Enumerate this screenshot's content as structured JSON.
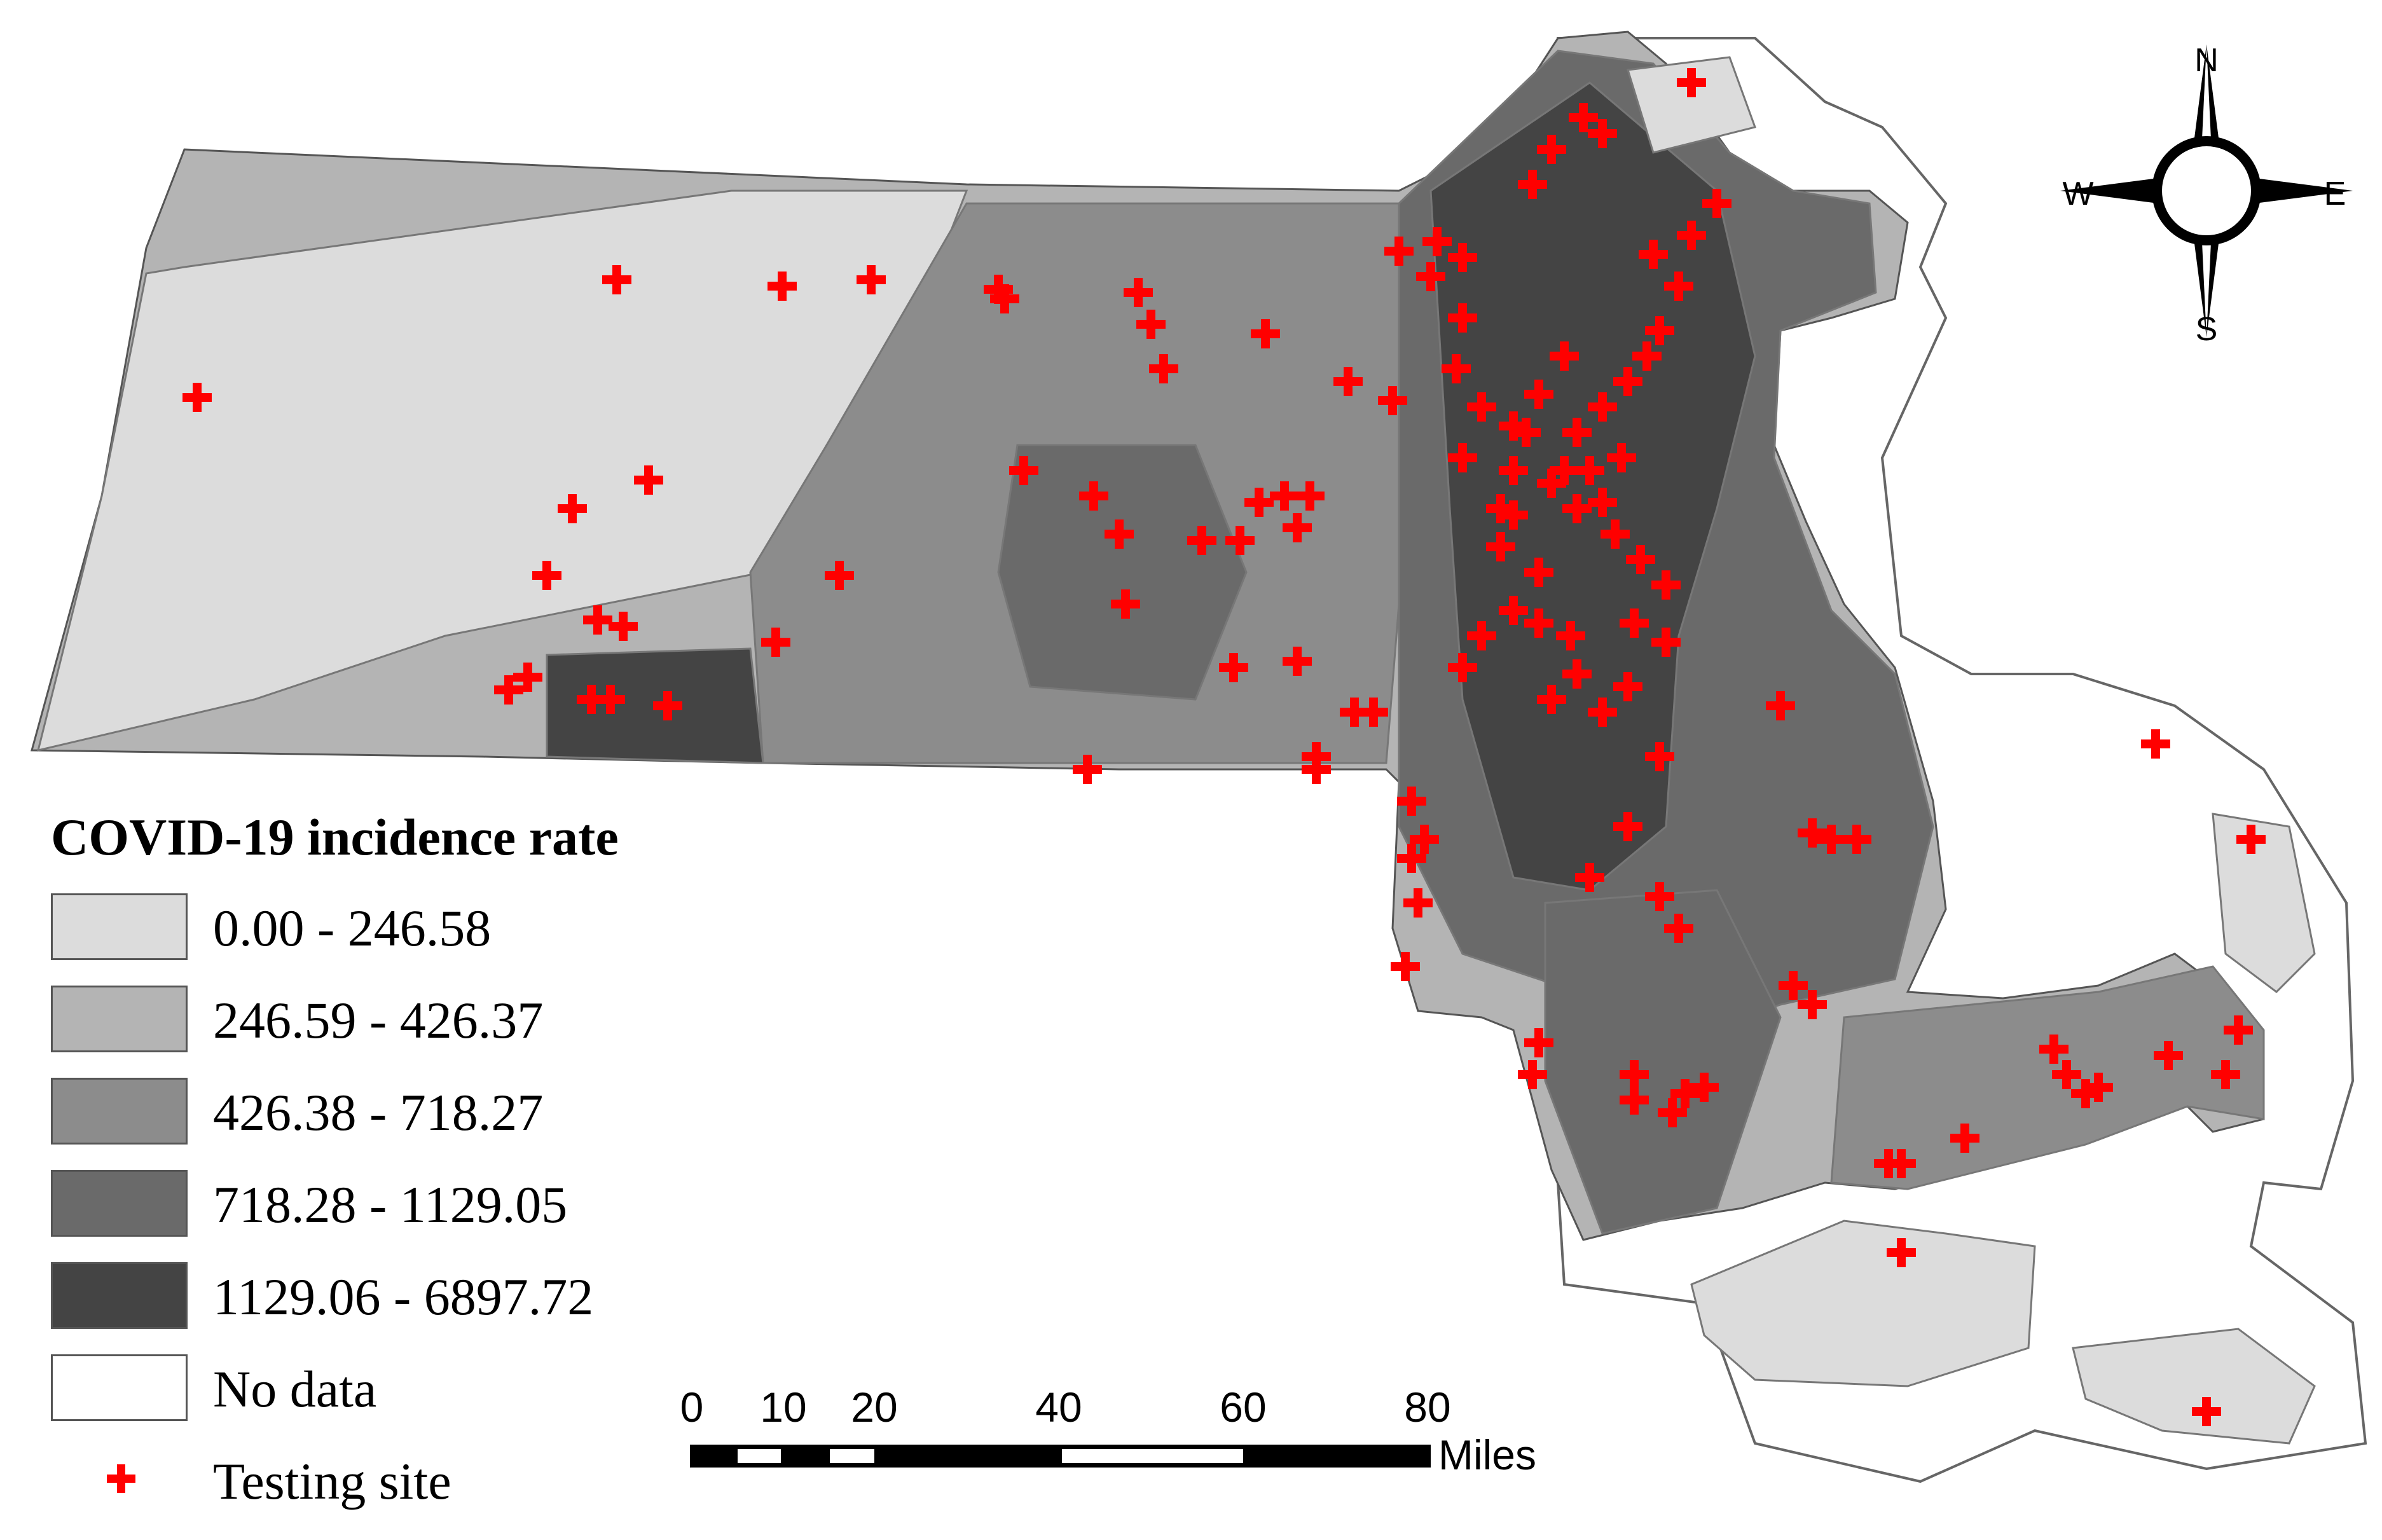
{
  "legend": {
    "title": "COVID-19 incidence rate",
    "classes": [
      {
        "label": "0.00 - 246.58",
        "color": "#dcdcdc"
      },
      {
        "label": "246.59 - 426.37",
        "color": "#b4b4b4"
      },
      {
        "label": "426.38 - 718.27",
        "color": "#8c8c8c"
      },
      {
        "label": "718.28 - 1129.05",
        "color": "#6a6a6a"
      },
      {
        "label": "1129.06 - 6897.72",
        "color": "#444444"
      },
      {
        "label": "No data",
        "color": "#ffffff"
      }
    ],
    "testing_site_label": "Testing site",
    "testing_site_color": "#ff0000"
  },
  "scale_bar": {
    "ticks": [
      "0",
      "10",
      "20",
      "40",
      "60",
      "80"
    ],
    "unit": "Miles"
  },
  "compass": {
    "north": "N",
    "south": "S",
    "east": "E",
    "west": "W"
  },
  "map": {
    "land_color": "#b4b4b4",
    "outline_color": "#555555",
    "clusters": {
      "west_light": "#dcdcdc",
      "central": "#8c8c8c",
      "boston_core": "#444444",
      "metro_ring": "#6a6a6a",
      "south_shore": "#6a6a6a",
      "cape": "#8c8c8c",
      "islands": "#dcdcdc"
    }
  }
}
